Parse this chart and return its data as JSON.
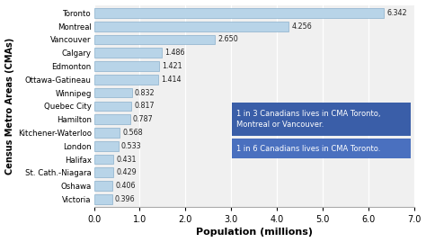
{
  "cities": [
    "Victoria",
    "Oshawa",
    "St. Cath.-Niagara",
    "Halifax",
    "London",
    "Kitchener-Waterloo",
    "Hamilton",
    "Quebec City",
    "Winnipeg",
    "Ottawa-Gatineau",
    "Edmonton",
    "Calgary",
    "Vancouver",
    "Montreal",
    "Toronto"
  ],
  "values": [
    0.396,
    0.406,
    0.429,
    0.431,
    0.533,
    0.568,
    0.787,
    0.817,
    0.832,
    1.414,
    1.421,
    1.486,
    2.65,
    4.256,
    6.342
  ],
  "bar_color": "#b8d4e8",
  "bar_edge_color": "#8ab0cc",
  "background_color": "#f0f0f0",
  "xlabel": "Population (millions)",
  "ylabel": "Census Metro Areas (CMAs)",
  "xlim": [
    0,
    7.0
  ],
  "xticks": [
    0.0,
    1.0,
    2.0,
    3.0,
    4.0,
    5.0,
    6.0,
    7.0
  ],
  "annotation_box1_text": "1 in 3 Canadians lives in CMA Toronto,\nMontreal or Vancouver.",
  "annotation_box2_text": "1 in 6 Canadians lives in CMA Toronto.",
  "annotation_box1_color": "#3a5ea8",
  "annotation_box2_color": "#4a70bf",
  "annotation_text_color": "#ffffff"
}
